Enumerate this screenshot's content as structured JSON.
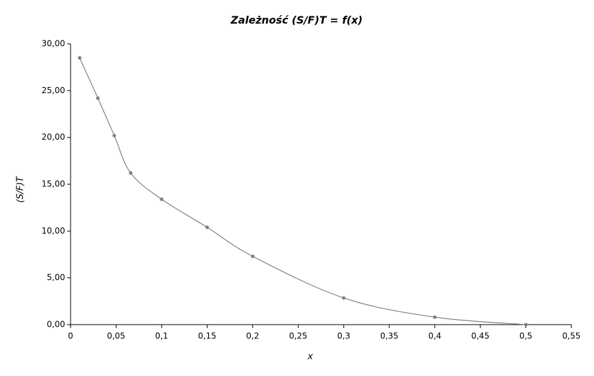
{
  "chart_data": {
    "type": "line",
    "title": "Zależność (S/F)T = f(x)",
    "x_label": "x",
    "y_label": "(S/F)T",
    "x": [
      0.01,
      0.03,
      0.048,
      0.066,
      0.1,
      0.15,
      0.2,
      0.3,
      0.4,
      0.5
    ],
    "series": [
      {
        "color": "#808080",
        "values": [
          28.5,
          24.2,
          20.2,
          16.2,
          13.4,
          10.4,
          7.3,
          2.85,
          0.8,
          0
        ]
      }
    ],
    "xlim": [
      0,
      0.55
    ],
    "xticks": [
      0,
      {
        "value": 0.05,
        "label": "0,05"
      },
      {
        "value": 0.1,
        "label": "0,1"
      },
      {
        "value": 0.15,
        "label": "0,15"
      },
      {
        "value": 0.2,
        "label": "0,2"
      },
      {
        "value": 0.25,
        "label": "0,25"
      },
      {
        "value": 0.3,
        "label": "0,3"
      },
      {
        "value": 0.35,
        "label": "0,35"
      },
      {
        "value": 0.4,
        "label": "0,4"
      },
      {
        "value": 0.45,
        "label": "0,45"
      },
      {
        "value": 0.5,
        "label": "0,5"
      },
      {
        "value": 0.55,
        "label": "0,55"
      }
    ],
    "ylim": [
      0,
      30
    ],
    "yticks": [
      {
        "value": 0,
        "label": "0,00"
      },
      {
        "value": 5,
        "label": "5,00"
      },
      {
        "value": 10,
        "label": "10,00"
      },
      {
        "value": 15,
        "label": "15,00"
      },
      {
        "value": 20,
        "label": "20,00"
      },
      {
        "value": 25,
        "label": "25,00"
      },
      {
        "value": 30,
        "label": "30,00"
      }
    ],
    "grid": false
  }
}
